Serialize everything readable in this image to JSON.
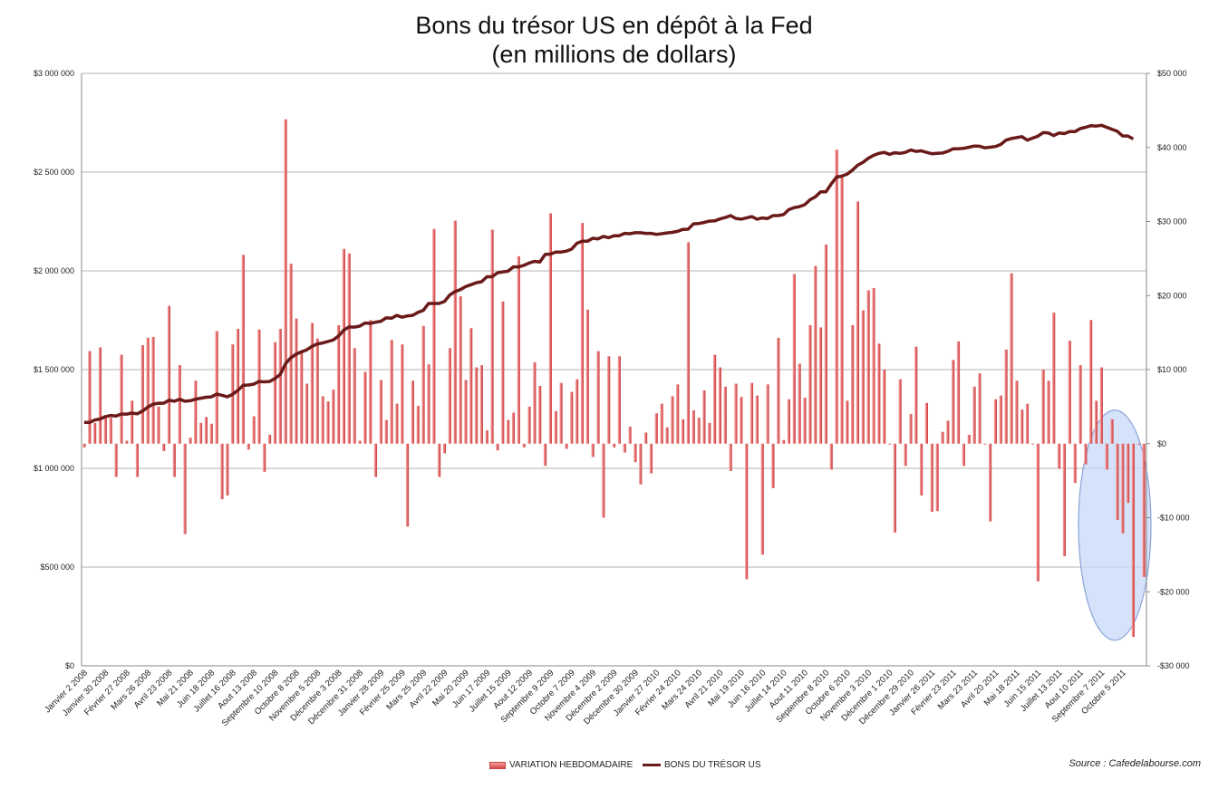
{
  "chart_data": {
    "type": "bar",
    "title_lines": [
      "Bons du trésor US en dépôt à la Fed",
      "(en millions de dollars)"
    ],
    "left_axis": {
      "ylim": [
        0,
        3000000
      ],
      "ticks": [
        0,
        500000,
        1000000,
        1500000,
        2000000,
        2500000,
        3000000
      ],
      "tick_labels": [
        "$0",
        "$500 000",
        "$1 000 000",
        "$1 500 000",
        "$2 000 000",
        "$2 500 000",
        "$3 000 000"
      ]
    },
    "right_axis": {
      "ylim": [
        -30000,
        50000
      ],
      "ticks": [
        -30000,
        -20000,
        -10000,
        0,
        10000,
        20000,
        30000,
        40000,
        50000
      ],
      "tick_labels": [
        "-$30 000",
        "-$20 000",
        "-$10 000",
        "$0",
        "$10 000",
        "$20 000",
        "$30 000",
        "$40 000",
        "$50 000"
      ]
    },
    "x_tick_labels": [
      "Janvier 2 2008",
      "Janvier 30 2008",
      "Février 27 2008",
      "Mars 26 2008",
      "Avril 23 2008",
      "Mai 21 2008",
      "Juin 18 2008",
      "Juillet 16 2008",
      "Aout 13 2008",
      "Septembre 10 2008",
      "Octobre 8 2008",
      "Novembre 5 2008",
      "Décembre 3 2008",
      "Décembre 31 2008",
      "Janvier 28 2009",
      "Février 25 2009",
      "Mars 25 2009",
      "Avril 22 2009",
      "Mai 20 2009",
      "Juin 17 2009",
      "Juillet 15 2009",
      "Aout 12 2009",
      "Septembre 9 2009",
      "Octobre 7 2009",
      "Novembre 4 2009",
      "Décembre 2 2009",
      "Décembre 30 2009",
      "Janvier 27 2010",
      "Février 24 2010",
      "Mars 24 2010",
      "Avril 21 2010",
      "Mai 19 2010",
      "Juin 16 2010",
      "Juillet 14 2010",
      "Aout 11 2010",
      "Septembre 8 2010",
      "Octobre 6 2010",
      "Novembre 3 2010",
      "Décembre 1 2010",
      "Décembre 29 2010",
      "Janvier 26 2011",
      "Février 23 2011",
      "Mars 23 2011",
      "Avril 20 2011",
      "Mai 18 2011",
      "Juin 15 2011",
      "Juillet 13 2011",
      "Aout 10 2011",
      "Septembre 7 2011",
      "Octobre 5 2011"
    ],
    "series": [
      {
        "name": "VARIATION HEBDOMADAIRE",
        "type": "bar",
        "axis": "right",
        "color": "#e06060",
        "values": [
          -500,
          12500,
          2800,
          13000,
          3600,
          3500,
          -4500,
          12000,
          400,
          5800,
          -4500,
          13300,
          14300,
          14400,
          5000,
          -1000,
          18600,
          -4500,
          10600,
          -12200,
          800,
          8500,
          2800,
          3600,
          2700,
          15200,
          -7500,
          -7000,
          13400,
          15500,
          25500,
          -800,
          3700,
          15400,
          -3800,
          1200,
          13700,
          15500,
          43800,
          24300,
          16900,
          12500,
          8100,
          16300,
          14200,
          6400,
          5700,
          7300,
          16000,
          26300,
          25700,
          12900,
          400,
          9700,
          16700,
          -4500,
          8600,
          3200,
          14000,
          5400,
          13400,
          -11200,
          8500,
          5100,
          15900,
          10700,
          29000,
          -4500,
          -1300,
          12900,
          30100,
          19900,
          8600,
          15600,
          10300,
          10600,
          1800,
          28900,
          -900,
          19200,
          3200,
          4200,
          25300,
          -500,
          5000,
          11000,
          7800,
          -3000,
          31100,
          4400,
          8200,
          -700,
          7000,
          8700,
          29800,
          18100,
          -1800,
          12500,
          -10000,
          11800,
          -500,
          11800,
          -1200,
          2300,
          -2500,
          -5500,
          1500,
          -4000,
          4100,
          5400,
          2200,
          6400,
          8000,
          3300,
          27200,
          4500,
          3500,
          7200,
          2800,
          12000,
          10300,
          7700,
          -3700,
          8100,
          6300,
          -18300,
          8200,
          6500,
          -15000,
          8000,
          -6000,
          14300,
          500,
          6000,
          22900,
          10800,
          6200,
          16000,
          24000,
          15700,
          26900,
          -3500,
          39700,
          36000,
          5800,
          16000,
          32700,
          18000,
          20700,
          21000,
          13500,
          10000,
          0,
          -12000,
          8700,
          -3000,
          4000,
          13100,
          -7000,
          5500,
          -9200,
          -9100,
          1600,
          3100,
          11300,
          13800,
          -3000,
          1200,
          7700,
          9500,
          0,
          -10500,
          6000,
          6500,
          12700,
          23000,
          8500,
          4600,
          5400,
          0,
          -18600,
          10000,
          8500,
          17700,
          -3400,
          -15200,
          13900,
          -5300,
          10600,
          -2800,
          16700,
          5800,
          10300,
          -3500,
          3300,
          -10300,
          -12100,
          -8000,
          -26100,
          0,
          -18000
        ]
      },
      {
        "name": "BONS DU TRÉSOR US",
        "type": "line",
        "axis": "left",
        "color": "#6b1a1a",
        "values": [
          1233000,
          1232000,
          1245000,
          1250000,
          1262000,
          1268000,
          1265000,
          1275000,
          1275000,
          1280000,
          1276000,
          1290000,
          1310000,
          1325000,
          1330000,
          1330000,
          1345000,
          1340000,
          1350000,
          1340000,
          1342000,
          1350000,
          1355000,
          1360000,
          1362000,
          1376000,
          1370000,
          1362000,
          1375000,
          1395000,
          1420000,
          1422000,
          1426000,
          1440000,
          1438000,
          1440000,
          1455000,
          1475000,
          1530000,
          1560000,
          1578000,
          1590000,
          1600000,
          1618000,
          1630000,
          1635000,
          1642000,
          1650000,
          1670000,
          1700000,
          1716000,
          1715000,
          1720000,
          1736000,
          1734000,
          1740000,
          1745000,
          1762000,
          1760000,
          1775000,
          1765000,
          1772000,
          1775000,
          1790000,
          1800000,
          1835000,
          1835000,
          1835000,
          1845000,
          1878000,
          1895000,
          1905000,
          1920000,
          1930000,
          1940000,
          1945000,
          1970000,
          1970000,
          1990000,
          1995000,
          1998000,
          2020000,
          2020000,
          2028000,
          2040000,
          2048000,
          2045000,
          2083000,
          2085000,
          2095000,
          2095000,
          2100000,
          2110000,
          2140000,
          2150000,
          2150000,
          2165000,
          2162000,
          2175000,
          2168000,
          2178000,
          2178000,
          2190000,
          2188000,
          2193000,
          2193000,
          2190000,
          2190000,
          2185000,
          2188000,
          2192000,
          2195000,
          2200000,
          2210000,
          2211000,
          2238000,
          2240000,
          2245000,
          2252000,
          2253000,
          2263000,
          2270000,
          2280000,
          2265000,
          2262000,
          2268000,
          2275000,
          2262000,
          2268000,
          2265000,
          2280000,
          2280000,
          2285000,
          2310000,
          2320000,
          2325000,
          2335000,
          2360000,
          2375000,
          2400000,
          2400000,
          2440000,
          2475000,
          2480000,
          2490000,
          2510000,
          2535000,
          2550000,
          2570000,
          2585000,
          2595000,
          2600000,
          2590000,
          2598000,
          2595000,
          2600000,
          2612000,
          2605000,
          2608000,
          2600000,
          2593000,
          2595000,
          2597000,
          2605000,
          2618000,
          2618000,
          2620000,
          2626000,
          2632000,
          2631000,
          2623000,
          2626000,
          2630000,
          2640000,
          2662000,
          2670000,
          2675000,
          2680000,
          2662000,
          2672000,
          2682000,
          2700000,
          2698000,
          2685000,
          2698000,
          2695000,
          2705000,
          2705000,
          2720000,
          2727000,
          2735000,
          2733000,
          2737000,
          2727000,
          2717000,
          2707000,
          2683000,
          2683000,
          2668000
        ]
      }
    ],
    "highlight": {
      "shape": "ellipse",
      "fill": "#c8d8f8",
      "stroke": "#8aa4d8"
    }
  },
  "legend": {
    "bar_label": "VARIATION HEBDOMADAIRE",
    "line_label": "BONS DU TRÉSOR US"
  },
  "source": "Source : Cafedelabourse.com"
}
